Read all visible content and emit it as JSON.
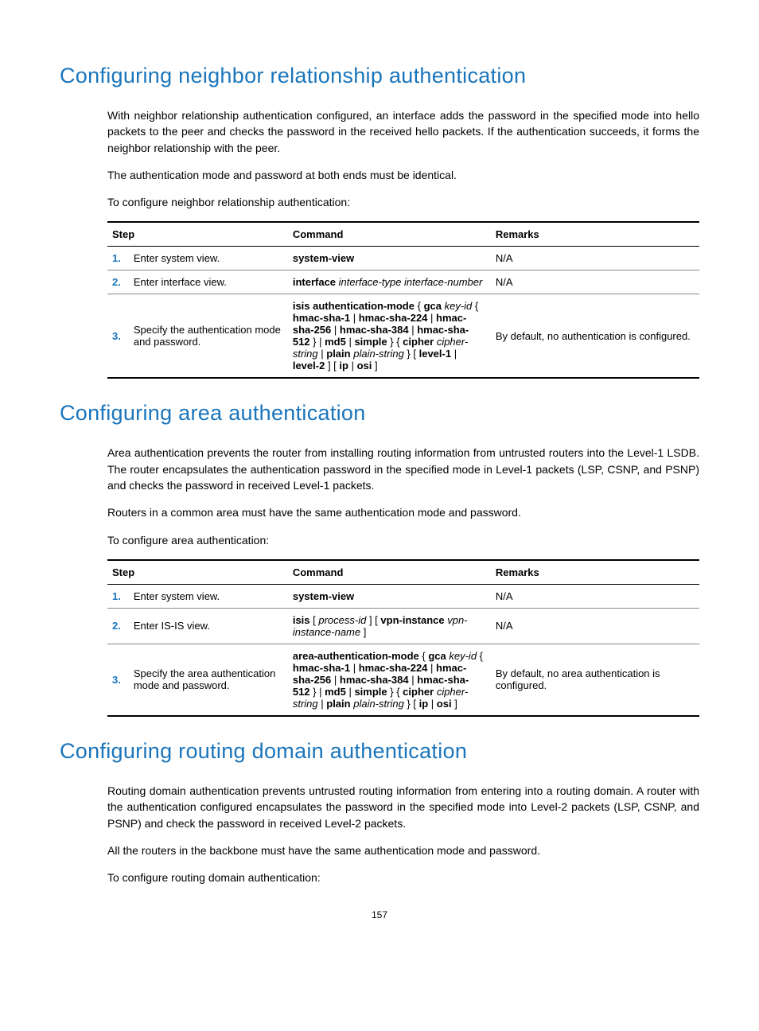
{
  "sections": [
    {
      "title": "Configuring neighbor relationship authentication",
      "paragraphs": [
        "With neighbor relationship authentication configured, an interface adds the password in the specified mode into hello packets to the peer and checks the password in the received hello packets. If the authentication succeeds, it forms the neighbor relationship with the peer.",
        "The authentication mode and password at both ends must be identical.",
        "To configure neighbor relationship authentication:"
      ],
      "table": {
        "headers": [
          "Step",
          "Command",
          "Remarks"
        ],
        "rows": [
          {
            "num": "1.",
            "step": "Enter system view.",
            "cmd_html": "<span class=\"bold\">system-view</span>",
            "rem": "N/A"
          },
          {
            "num": "2.",
            "step": "Enter interface view.",
            "cmd_html": "<span class=\"bold\">interface</span> <span class=\"italic\">interface-type interface-number</span>",
            "rem": "N/A"
          },
          {
            "num": "3.",
            "step": "Specify the authentication mode and password.",
            "cmd_html": "<span class=\"bold\">isis authentication-mode</span> { <span class=\"bold\">gca</span> <span class=\"italic\">key-id</span> { <span class=\"bold\">hmac-sha-1</span> | <span class=\"bold\">hmac-sha-224</span> | <span class=\"bold\">hmac-sha-256</span> | <span class=\"bold\">hmac-sha-384</span> | <span class=\"bold\">hmac-sha-512</span> } | <span class=\"bold\">md5</span> | <span class=\"bold\">simple</span> } { <span class=\"bold\">cipher</span> <span class=\"italic\">cipher-string</span> | <span class=\"bold\">plain</span> <span class=\"italic\">plain-string</span> } [ <span class=\"bold\">level-1</span> | <span class=\"bold\">level-2</span> ] [ <span class=\"bold\">ip</span> | <span class=\"bold\">osi</span> ]",
            "rem": "By default, no authentication is configured."
          }
        ]
      }
    },
    {
      "title": "Configuring area authentication",
      "paragraphs": [
        "Area authentication prevents the router from installing routing information from untrusted routers into the Level-1 LSDB. The router encapsulates the authentication password in the specified mode in Level-1 packets (LSP, CSNP, and PSNP) and checks the password in received Level-1 packets.",
        "Routers in a common area must have the same authentication mode and password.",
        "To configure area authentication:"
      ],
      "table": {
        "headers": [
          "Step",
          "Command",
          "Remarks"
        ],
        "rows": [
          {
            "num": "1.",
            "step": "Enter system view.",
            "cmd_html": "<span class=\"bold\">system-view</span>",
            "rem": "N/A"
          },
          {
            "num": "2.",
            "step": "Enter IS-IS view.",
            "cmd_html": "<span class=\"bold\">isis</span> [ <span class=\"italic\">process-id</span> ] [ <span class=\"bold\">vpn-instance</span> <span class=\"italic\">vpn-instance-name</span> ]",
            "rem": "N/A"
          },
          {
            "num": "3.",
            "step": "Specify the area authentication mode and password.",
            "cmd_html": "<span class=\"bold\">area-authentication-mode</span> { <span class=\"bold\">gca</span> <span class=\"italic\">key-id</span> { <span class=\"bold\">hmac-sha-1</span> | <span class=\"bold\">hmac-sha-224</span> | <span class=\"bold\">hmac-sha-256</span> | <span class=\"bold\">hmac-sha-384</span> | <span class=\"bold\">hmac-sha-512</span> } | <span class=\"bold\">md5</span> | <span class=\"bold\">simple</span> } { <span class=\"bold\">cipher</span> <span class=\"italic\">cipher-string</span> | <span class=\"bold\">plain</span> <span class=\"italic\">plain-string</span> } [ <span class=\"bold\">ip</span> | <span class=\"bold\">osi</span> ]",
            "rem": "By default, no area authentication is configured."
          }
        ]
      }
    },
    {
      "title": "Configuring routing domain authentication",
      "paragraphs": [
        "Routing domain authentication prevents untrusted routing information from entering into a routing domain. A router with the authentication configured encapsulates the password in the specified mode into Level-2 packets (LSP, CSNP, and PSNP) and check the password in received Level-2 packets.",
        "All the routers in the backbone must have the same authentication mode and password.",
        "To configure routing domain authentication:"
      ],
      "table": null
    }
  ],
  "page_number": "157"
}
